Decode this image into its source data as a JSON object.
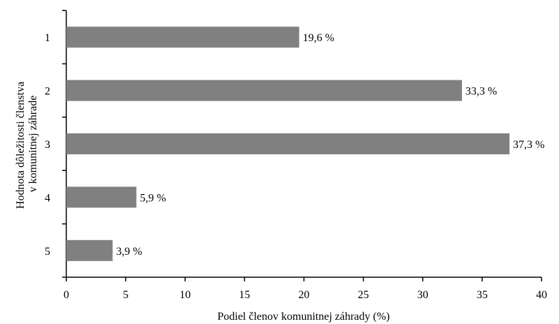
{
  "chart_data": {
    "type": "bar",
    "orientation": "horizontal",
    "categories": [
      "1",
      "2",
      "3",
      "4",
      "5"
    ],
    "values": [
      19.6,
      33.3,
      37.3,
      5.9,
      3.9
    ],
    "value_labels": [
      "19,6 %",
      "33,3 %",
      "37,3 %",
      "5,9 %",
      "3,9 %"
    ],
    "xlabel": "Podiel členov komunitnej záhrady (%)",
    "ylabel_lines": [
      "Hodnota dôležitosti členstva",
      "v komunitnej záhrade"
    ],
    "xlim": [
      0,
      40
    ],
    "xticks": [
      "0",
      "5",
      "10",
      "15",
      "20",
      "25",
      "30",
      "35",
      "40"
    ],
    "grid": false,
    "legend": "none",
    "bar_color": "#808080"
  }
}
